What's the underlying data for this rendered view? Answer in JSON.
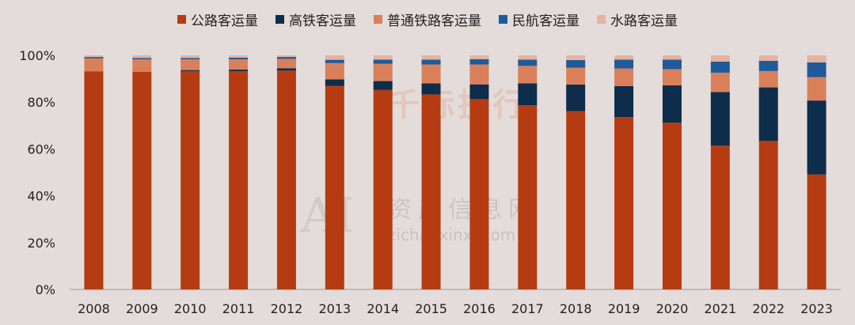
{
  "chart_data": {
    "type": "bar",
    "stacked": true,
    "categories": [
      "2008",
      "2009",
      "2010",
      "2011",
      "2012",
      "2013",
      "2014",
      "2015",
      "2016",
      "2017",
      "2018",
      "2019",
      "2020",
      "2021",
      "2022",
      "2023"
    ],
    "y_ticks": [
      "0%",
      "20%",
      "40%",
      "60%",
      "80%",
      "100%"
    ],
    "ylim": [
      0,
      100
    ],
    "legend_position": "top",
    "series": [
      {
        "name": "公路客运量",
        "color": "#b53c12",
        "values": [
          93.2,
          93.0,
          93.2,
          93.2,
          93.5,
          87.0,
          85.2,
          83.3,
          81.3,
          78.7,
          76.2,
          73.6,
          71.2,
          61.4,
          63.4,
          49.1
        ]
      },
      {
        "name": "高铁客运量",
        "color": "#0d2d4a",
        "values": [
          0.0,
          0.0,
          0.5,
          0.7,
          1.0,
          2.7,
          3.8,
          4.7,
          6.3,
          9.3,
          11.3,
          13.3,
          16.0,
          22.9,
          22.9,
          31.6
        ]
      },
      {
        "name": "普通铁路客运量",
        "color": "#d9805a",
        "values": [
          5.5,
          5.3,
          4.6,
          4.4,
          4.0,
          7.0,
          7.4,
          8.1,
          8.5,
          7.5,
          7.2,
          7.5,
          6.9,
          8.3,
          7.0,
          10.0
        ]
      },
      {
        "name": "民航客运量",
        "color": "#1f5b99",
        "values": [
          0.6,
          0.6,
          0.6,
          0.7,
          0.8,
          1.4,
          1.8,
          2.1,
          2.3,
          2.7,
          3.3,
          3.8,
          4.1,
          4.7,
          4.4,
          6.3
        ]
      },
      {
        "name": "水路客运量",
        "color": "#e6b3a0",
        "values": [
          0.7,
          1.1,
          1.1,
          1.0,
          0.7,
          1.9,
          1.8,
          1.8,
          1.6,
          1.8,
          2.0,
          1.8,
          1.8,
          2.7,
          2.3,
          3.0
        ]
      }
    ]
  },
  "watermark": {
    "brand": "千际投行",
    "ai": "AI",
    "site_cn": "资产信息网",
    "site_url": "zichanxinxi.com"
  }
}
